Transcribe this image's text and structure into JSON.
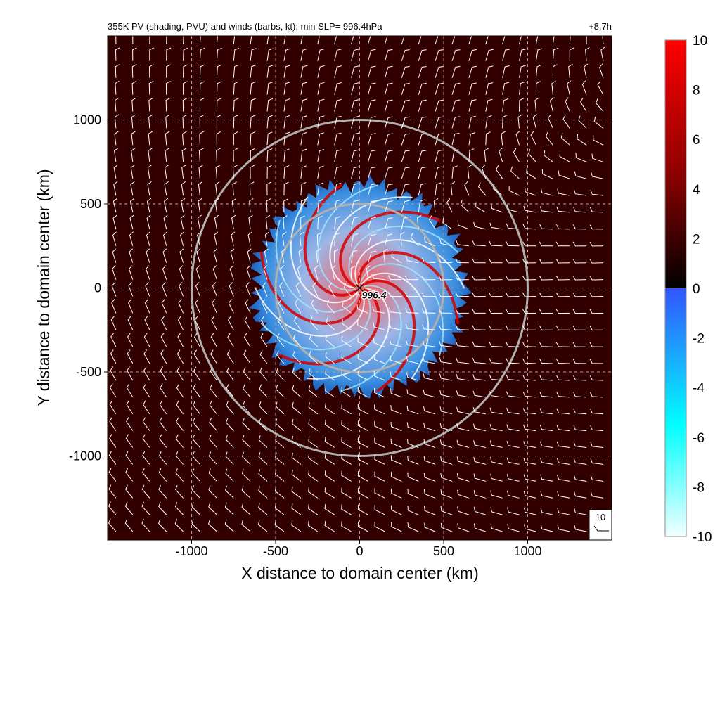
{
  "chart_data": {
    "type": "heatmap",
    "title": "355K PV (shading, PVU) and winds (barbs, kt); min SLP=  996.4hPa",
    "time_label": "+8.7h",
    "xlabel": "X distance to domain center (km)",
    "ylabel": "Y distance to domain center (km)",
    "xlim": [
      -1500,
      1500
    ],
    "ylim": [
      -1500,
      1500
    ],
    "grid": true,
    "x_ticks": [
      -1000,
      -500,
      0,
      500,
      1000
    ],
    "y_ticks": [
      1000,
      500,
      0,
      -500,
      -1000
    ],
    "x_tick_labels": [
      "-1000",
      "-500",
      "0",
      "500",
      "1000"
    ],
    "y_tick_labels": [
      "1000",
      "500",
      "0",
      "-500",
      "-1000"
    ],
    "colorbar": {
      "min": -10,
      "max": 10,
      "ticks": [
        10,
        8,
        6,
        4,
        2,
        0,
        -2,
        -4,
        -6,
        -8,
        -10
      ],
      "tick_labels": [
        "10",
        "8",
        "6",
        "4",
        "2",
        "0",
        "-2",
        "-4",
        "-6",
        "-8",
        "-10"
      ],
      "colors": {
        "high": "#ff0000",
        "mid_high": "#8a0000",
        "low_positive": "#000000",
        "zero_negative": "#3355ff",
        "mid_negative": "#00ffff",
        "low": "#f2ffff"
      }
    },
    "background_pv_color": "#330000",
    "center_marker": {
      "x": 0,
      "y": 0,
      "label": "996.4"
    },
    "range_rings_km": [
      500,
      1000
    ],
    "vortex_radius_km": 650,
    "wind_barbs": {
      "spacing_km": 100,
      "reference_label": "10",
      "units": "kt"
    }
  }
}
